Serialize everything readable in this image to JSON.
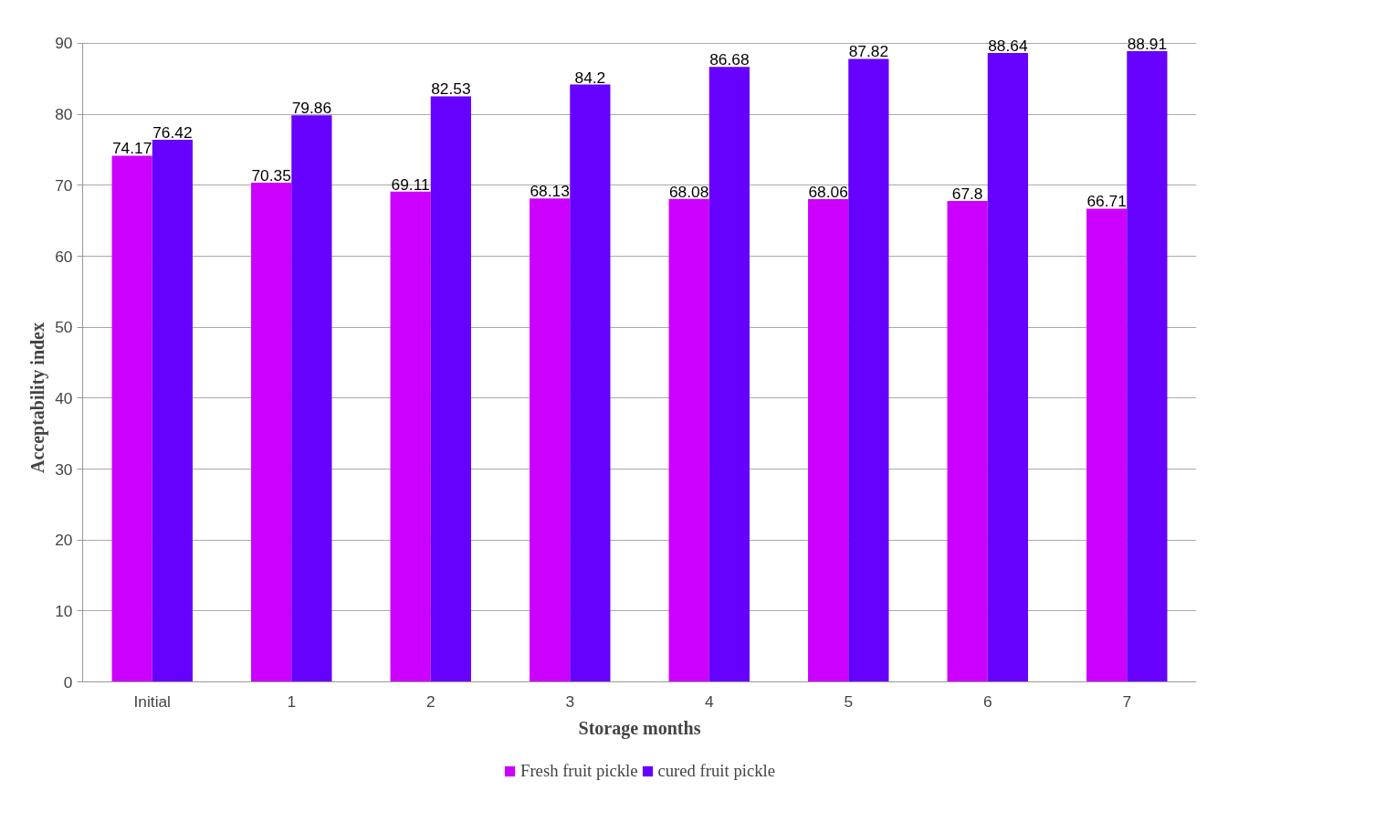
{
  "chart_data": {
    "type": "bar",
    "xlabel": "Storage months",
    "ylabel": "Acceptability index",
    "categories": [
      "Initial",
      "1",
      "2",
      "3",
      "4",
      "5",
      "6",
      "7"
    ],
    "series": [
      {
        "name": "Fresh fruit pickle",
        "color": "#cc00ff",
        "values": [
          74.17,
          70.35,
          69.11,
          68.13,
          68.08,
          68.06,
          67.8,
          66.71
        ]
      },
      {
        "name": "cured fruit pickle",
        "color": "#6600ff",
        "values": [
          76.42,
          79.86,
          82.53,
          84.2,
          86.68,
          87.82,
          88.64,
          88.91
        ]
      }
    ],
    "ylim": [
      0,
      90
    ],
    "yticks": [
      0,
      10,
      20,
      30,
      40,
      50,
      60,
      70,
      80,
      90
    ],
    "grid": "y",
    "legend": "bottom",
    "data_labels": true
  }
}
